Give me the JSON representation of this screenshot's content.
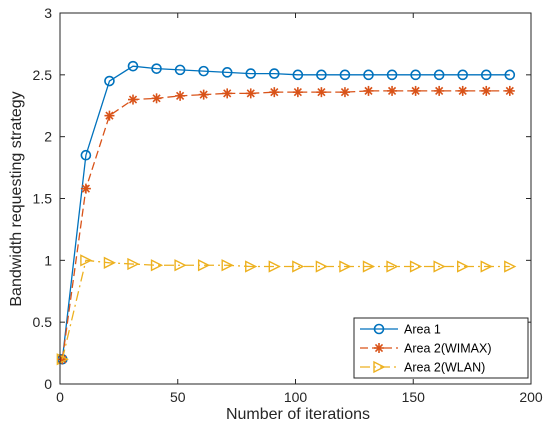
{
  "chart_data": {
    "type": "line",
    "xlabel": "Number of iterations",
    "ylabel": "Bandwidth requesting strategy",
    "xlim": [
      0,
      200
    ],
    "ylim": [
      0,
      3
    ],
    "xticks": [
      0,
      50,
      100,
      150,
      200
    ],
    "yticks": [
      0,
      0.5,
      1,
      1.5,
      2,
      2.5,
      3
    ],
    "xtick_labels": [
      "0",
      "50",
      "100",
      "150",
      "200"
    ],
    "ytick_labels": [
      "0",
      "0.5",
      "1",
      "1.5",
      "2",
      "2.5",
      "3"
    ],
    "legend_position": "bottom-right",
    "grid": false,
    "x": [
      1,
      11,
      21,
      31,
      41,
      51,
      61,
      71,
      81,
      91,
      101,
      111,
      121,
      131,
      141,
      151,
      161,
      171,
      181,
      191
    ],
    "series": [
      {
        "name": "Area 1",
        "color": "#0072BD",
        "line_style": "solid",
        "marker": "circle",
        "values": [
          0.2,
          1.85,
          2.45,
          2.57,
          2.55,
          2.54,
          2.53,
          2.52,
          2.51,
          2.51,
          2.5,
          2.5,
          2.5,
          2.5,
          2.5,
          2.5,
          2.5,
          2.5,
          2.5,
          2.5
        ]
      },
      {
        "name": "Area 2(WIMAX)",
        "color": "#D95319",
        "line_style": "dashed",
        "marker": "asterisk",
        "values": [
          0.2,
          1.58,
          2.17,
          2.3,
          2.31,
          2.33,
          2.34,
          2.35,
          2.35,
          2.36,
          2.36,
          2.36,
          2.36,
          2.37,
          2.37,
          2.37,
          2.37,
          2.37,
          2.37,
          2.37
        ]
      },
      {
        "name": "Area 2(WLAN)",
        "color": "#EDB120",
        "line_style": "dashdot",
        "marker": "triangle-right",
        "values": [
          0.2,
          1.0,
          0.98,
          0.97,
          0.96,
          0.96,
          0.96,
          0.96,
          0.95,
          0.95,
          0.95,
          0.95,
          0.95,
          0.95,
          0.95,
          0.95,
          0.95,
          0.95,
          0.95,
          0.95
        ]
      }
    ]
  }
}
